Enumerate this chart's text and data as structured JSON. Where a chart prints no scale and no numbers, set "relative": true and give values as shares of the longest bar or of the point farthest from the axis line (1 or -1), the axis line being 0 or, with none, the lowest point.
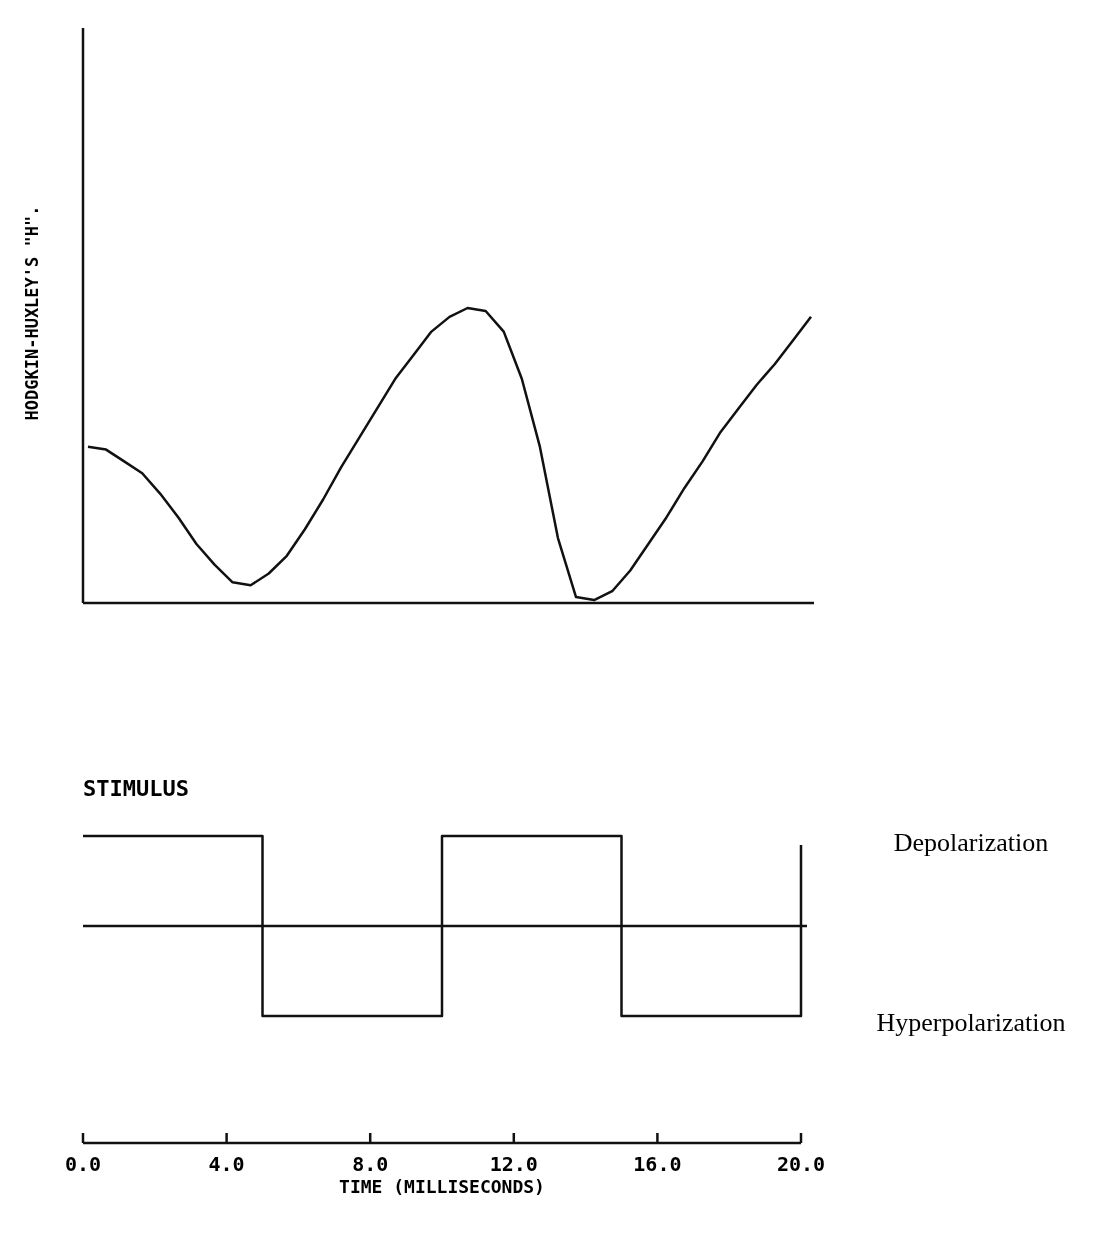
{
  "chart_data": [
    {
      "type": "line",
      "relative": true,
      "ylabel": "HODGKIN-HUXLEY'S \"H\".",
      "color": "#111111",
      "categories": [
        null,
        null,
        null,
        null,
        null,
        null,
        null,
        null,
        null,
        null,
        null,
        null,
        null,
        null,
        null,
        null,
        null,
        null,
        null,
        null,
        null,
        null,
        null,
        null,
        null,
        null,
        null,
        null,
        null,
        null,
        null,
        null,
        null,
        null,
        null,
        null,
        null,
        null,
        null,
        null,
        null
      ],
      "values": [
        0.53,
        0.52,
        0.48,
        0.44,
        0.37,
        0.29,
        0.2,
        0.13,
        0.07,
        0.06,
        0.1,
        0.16,
        0.25,
        0.35,
        0.46,
        0.56,
        0.66,
        0.76,
        0.84,
        0.92,
        0.97,
        1,
        0.99,
        0.92,
        0.76,
        0.53,
        0.22,
        0.02,
        0.01,
        0.04,
        0.11,
        0.2,
        0.29,
        0.39,
        0.48,
        0.58,
        0.66,
        0.74,
        0.81,
        0.89,
        0.97
      ]
    },
    {
      "type": "step",
      "relative": true,
      "title": "STIMULUS",
      "xlabel": "TIME (MILLISECONDS)",
      "color": "#111111",
      "xlim": [
        0,
        20
      ],
      "xticks": [
        {
          "value": 0,
          "label": "0.0"
        },
        {
          "value": 4,
          "label": "4.0"
        },
        {
          "value": 8,
          "label": "8.0"
        },
        {
          "value": 12,
          "label": "12.0"
        },
        {
          "value": 16,
          "label": "16.0"
        },
        {
          "value": 20,
          "label": "20.0"
        }
      ],
      "x": [
        0,
        5,
        10,
        15,
        20
      ],
      "values": [
        1,
        -1,
        1,
        -1,
        0.9
      ],
      "annotations": [
        "Depolarization",
        "Hyperpolarization"
      ]
    }
  ]
}
